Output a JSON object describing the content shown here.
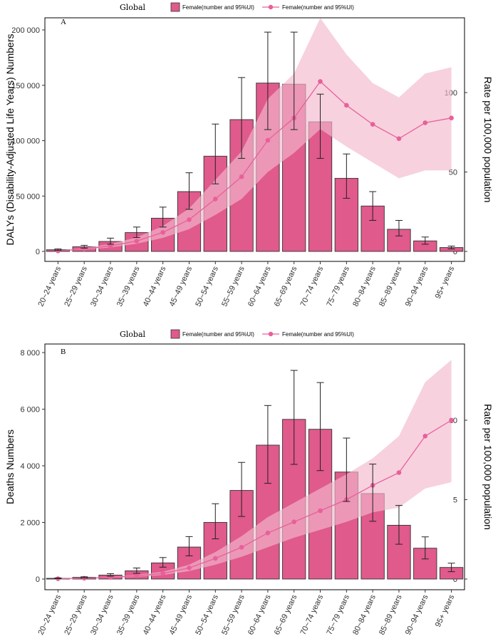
{
  "colors": {
    "bar_fill": "#e05a8c",
    "bar_stroke": "#333333",
    "line": "#e8609a",
    "ribbon": "#f2b8cc"
  },
  "chart_data": [
    {
      "type": "bar",
      "panel_label": "A",
      "group_label": "Global",
      "legend": {
        "bar_label": "Female(number and 95%UI)",
        "line_label": "Female(number and 95%UI)"
      },
      "ylabel": "DALYs (Disability-Adjusted Life Years) Numbers",
      "y2label": "Rate per 100,000 population",
      "ylim": [
        0,
        200000
      ],
      "yticks": [
        0,
        50000,
        100000,
        150000,
        200000
      ],
      "ytick_labels": [
        "0",
        "50 000",
        "100 000",
        "150 000",
        "200 000"
      ],
      "y2lim": [
        0,
        100
      ],
      "y2ticks": [
        0,
        50,
        100
      ],
      "y2tick_labels": [
        "0",
        "50",
        "100"
      ],
      "categories": [
        "20~24 years",
        "25~29 years",
        "30~34 years",
        "35~39 years",
        "40~44 years",
        "45~49 years",
        "50~54 years",
        "55~59 years",
        "60~64 years",
        "65~69 years",
        "70~74 years",
        "75~79 years",
        "80~84 years",
        "85~89 years",
        "90~94 years",
        "95+ years"
      ],
      "values": [
        1500,
        4200,
        9000,
        17000,
        30000,
        54000,
        86000,
        119000,
        152000,
        151000,
        117000,
        66000,
        41000,
        20000,
        9500,
        3500
      ],
      "errors_lower": [
        900,
        3000,
        6500,
        12500,
        22000,
        38000,
        61000,
        84000,
        110000,
        110000,
        84000,
        48000,
        28000,
        14000,
        6500,
        2300
      ],
      "errors_upper": [
        2200,
        5500,
        12000,
        22000,
        40000,
        71000,
        115000,
        157000,
        198000,
        198000,
        142000,
        88000,
        54000,
        28000,
        13000,
        4800
      ],
      "rate": [
        0.3,
        1.5,
        3.5,
        6.5,
        12,
        20,
        33,
        47,
        70,
        84,
        107,
        92,
        80,
        71,
        81,
        84
      ],
      "rate_lower": [
        0.2,
        1.0,
        2.5,
        4.8,
        8.5,
        14,
        23,
        33,
        50,
        62,
        77,
        66,
        56,
        46,
        51,
        51
      ],
      "rate_upper": [
        0.5,
        2.1,
        4.7,
        8.8,
        16,
        27,
        45,
        63,
        96,
        112,
        147,
        124,
        106,
        97,
        112,
        116
      ]
    },
    {
      "type": "bar",
      "panel_label": "B",
      "group_label": "Global",
      "legend": {
        "bar_label": "Female(number and 95%UI)",
        "line_label": "Female(number and 95%UI)"
      },
      "ylabel": "Deaths Numbers",
      "y2label": "Rate per 100,000 population",
      "ylim": [
        0,
        8000
      ],
      "yticks": [
        0,
        2000,
        4000,
        6000,
        8000
      ],
      "ytick_labels": [
        "0",
        "2 000",
        "4 000",
        "6 000",
        "8 000"
      ],
      "y2lim": [
        0,
        10
      ],
      "y2ticks": [
        0,
        5,
        10
      ],
      "y2tick_labels": [
        "0",
        "5",
        "10"
      ],
      "categories": [
        "20~24 years",
        "25~29 years",
        "30~34 years",
        "35~39 years",
        "40~44 years",
        "45~49 years",
        "50~54 years",
        "55~59 years",
        "60~64 years",
        "65~69 years",
        "70~74 years",
        "75~79 years",
        "80~84 years",
        "85~89 years",
        "90~94 years",
        "95+ years"
      ],
      "values": [
        25,
        60,
        140,
        290,
        570,
        1130,
        2000,
        3130,
        4730,
        5640,
        5290,
        3780,
        3020,
        1900,
        1090,
        410
      ],
      "errors_lower": [
        15,
        40,
        100,
        200,
        420,
        820,
        1420,
        2210,
        3380,
        4050,
        3830,
        2740,
        2040,
        1230,
        710,
        260
      ],
      "errors_upper": [
        40,
        80,
        190,
        390,
        760,
        1500,
        2660,
        4120,
        6130,
        7370,
        6940,
        4980,
        4060,
        2600,
        1490,
        560
      ],
      "rate": [
        0.02,
        0.05,
        0.1,
        0.2,
        0.35,
        0.7,
        1.3,
        2.0,
        2.9,
        3.6,
        4.3,
        5.0,
        5.9,
        6.7,
        9.0,
        10.0
      ],
      "rate_lower": [
        0.01,
        0.03,
        0.07,
        0.14,
        0.25,
        0.5,
        0.9,
        1.4,
        2.0,
        2.6,
        3.1,
        3.6,
        4.2,
        4.5,
        5.7,
        6.1
      ],
      "rate_upper": [
        0.03,
        0.07,
        0.14,
        0.27,
        0.46,
        0.9,
        1.7,
        2.7,
        3.9,
        4.8,
        5.7,
        6.6,
        7.6,
        9.0,
        12.4,
        13.8
      ]
    }
  ]
}
